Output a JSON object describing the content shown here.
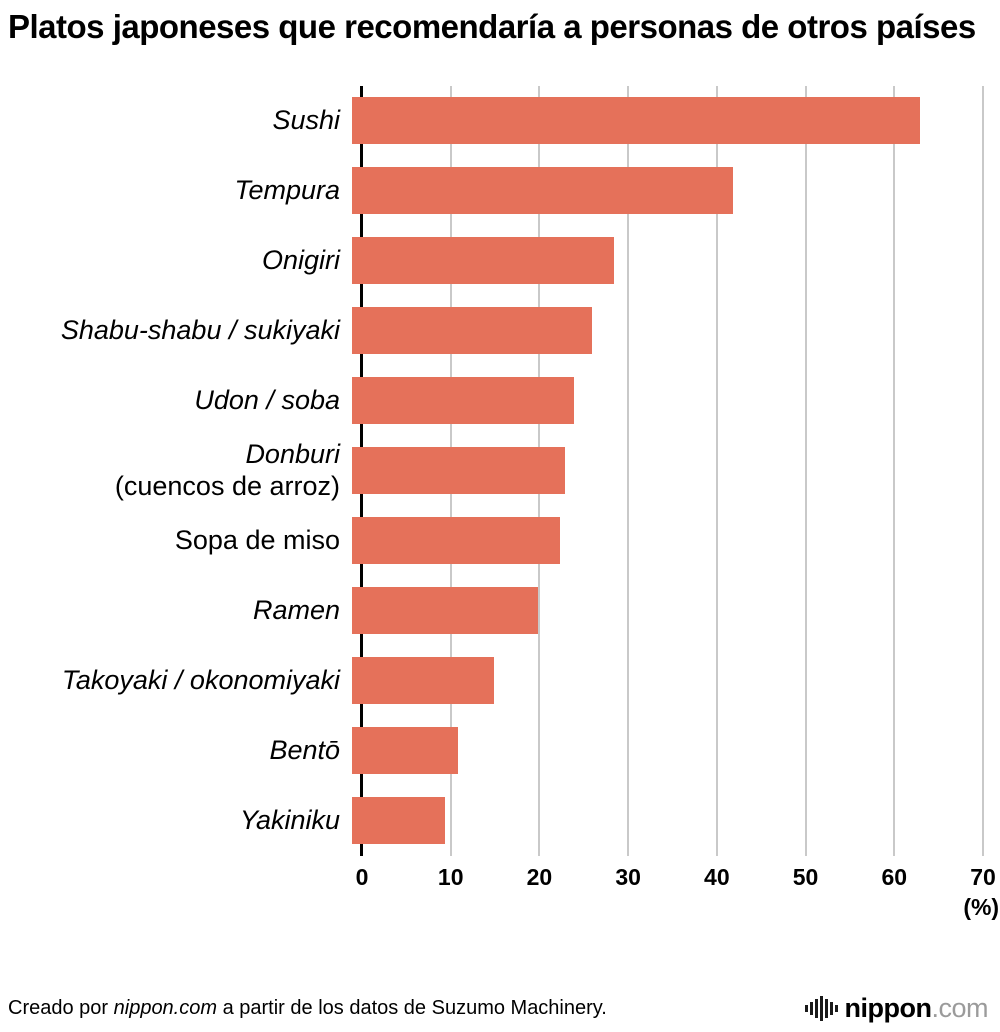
{
  "title": "Platos japoneses que recomendaría a personas de otros países",
  "chart_data": {
    "type": "bar",
    "orientation": "horizontal",
    "title": "Platos japoneses que recomendaría a personas de otros países",
    "categories": [
      "Sushi",
      "Tempura",
      "Onigiri",
      "Shabu-shabu / sukiyaki",
      "Udon / soba",
      "Donburi",
      "Sopa de miso",
      "Ramen",
      "Takoyaki / okonomiyaki",
      "Bentō",
      "Yakiniku"
    ],
    "category_sublabels": [
      "",
      "",
      "",
      "",
      "",
      "(cuencos de arroz)",
      "",
      "",
      "",
      "",
      ""
    ],
    "category_italic": [
      true,
      true,
      true,
      true,
      true,
      true,
      false,
      true,
      true,
      true,
      true
    ],
    "values": [
      64,
      43,
      29.5,
      27,
      25,
      24,
      23.5,
      21,
      16,
      12,
      10.5
    ],
    "xlim": [
      0,
      70
    ],
    "xticks": [
      0,
      10,
      20,
      30,
      40,
      50,
      60,
      70
    ],
    "x_unit_label": "(%)",
    "bar_color": "#E5715A",
    "grid_color": "#C9C9C9",
    "axis_color": "#000000",
    "legend": "none",
    "grid": "vertical"
  },
  "footer": {
    "credit_prefix": "Creado por ",
    "credit_source": "nippon.com",
    "credit_suffix": " a partir de los datos de Suzumo Machinery.",
    "logo_text": "nippon",
    "logo_suffix": ".com"
  }
}
